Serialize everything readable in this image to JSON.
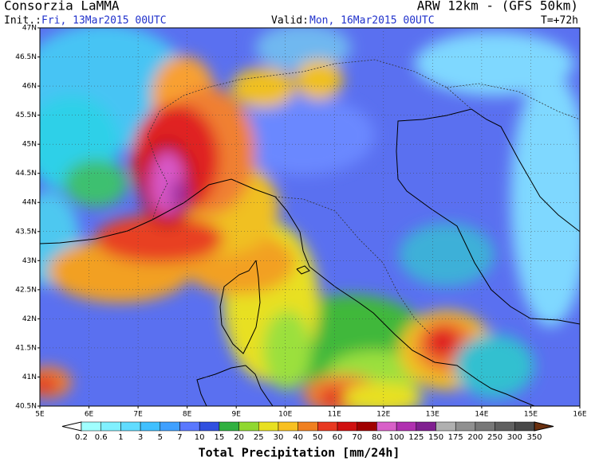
{
  "header": {
    "title": "Consorzia LaMMA",
    "model": "ARW 12km  - (GFS 50km)",
    "init_label": "Init.:",
    "init_value": "Fri, 13Mar2015 00UTC",
    "valid_label": "Valid:",
    "valid_value": "Mon, 16Mar2015 00UTC",
    "lead": "T=+72h"
  },
  "map": {
    "lat_labels": [
      "47N",
      "46.5N",
      "46N",
      "45.5N",
      "45N",
      "44.5N",
      "44N",
      "43.5N",
      "43N",
      "42.5N",
      "42N",
      "41.5N",
      "41N",
      "40.5N"
    ],
    "lon_labels": [
      "5E",
      "6E",
      "7E",
      "8E",
      "9E",
      "10E",
      "11E",
      "12E",
      "13E",
      "14E",
      "15E",
      "16E"
    ]
  },
  "colorbar": {
    "labels": [
      "0.2",
      "0.6",
      "1",
      "3",
      "5",
      "7",
      "10",
      "15",
      "20",
      "25",
      "30",
      "40",
      "50",
      "60",
      "70",
      "80",
      "100",
      "125",
      "150",
      "175",
      "200",
      "250",
      "300",
      "350"
    ],
    "title": "Total Precipitation [mm/24h]"
  }
}
